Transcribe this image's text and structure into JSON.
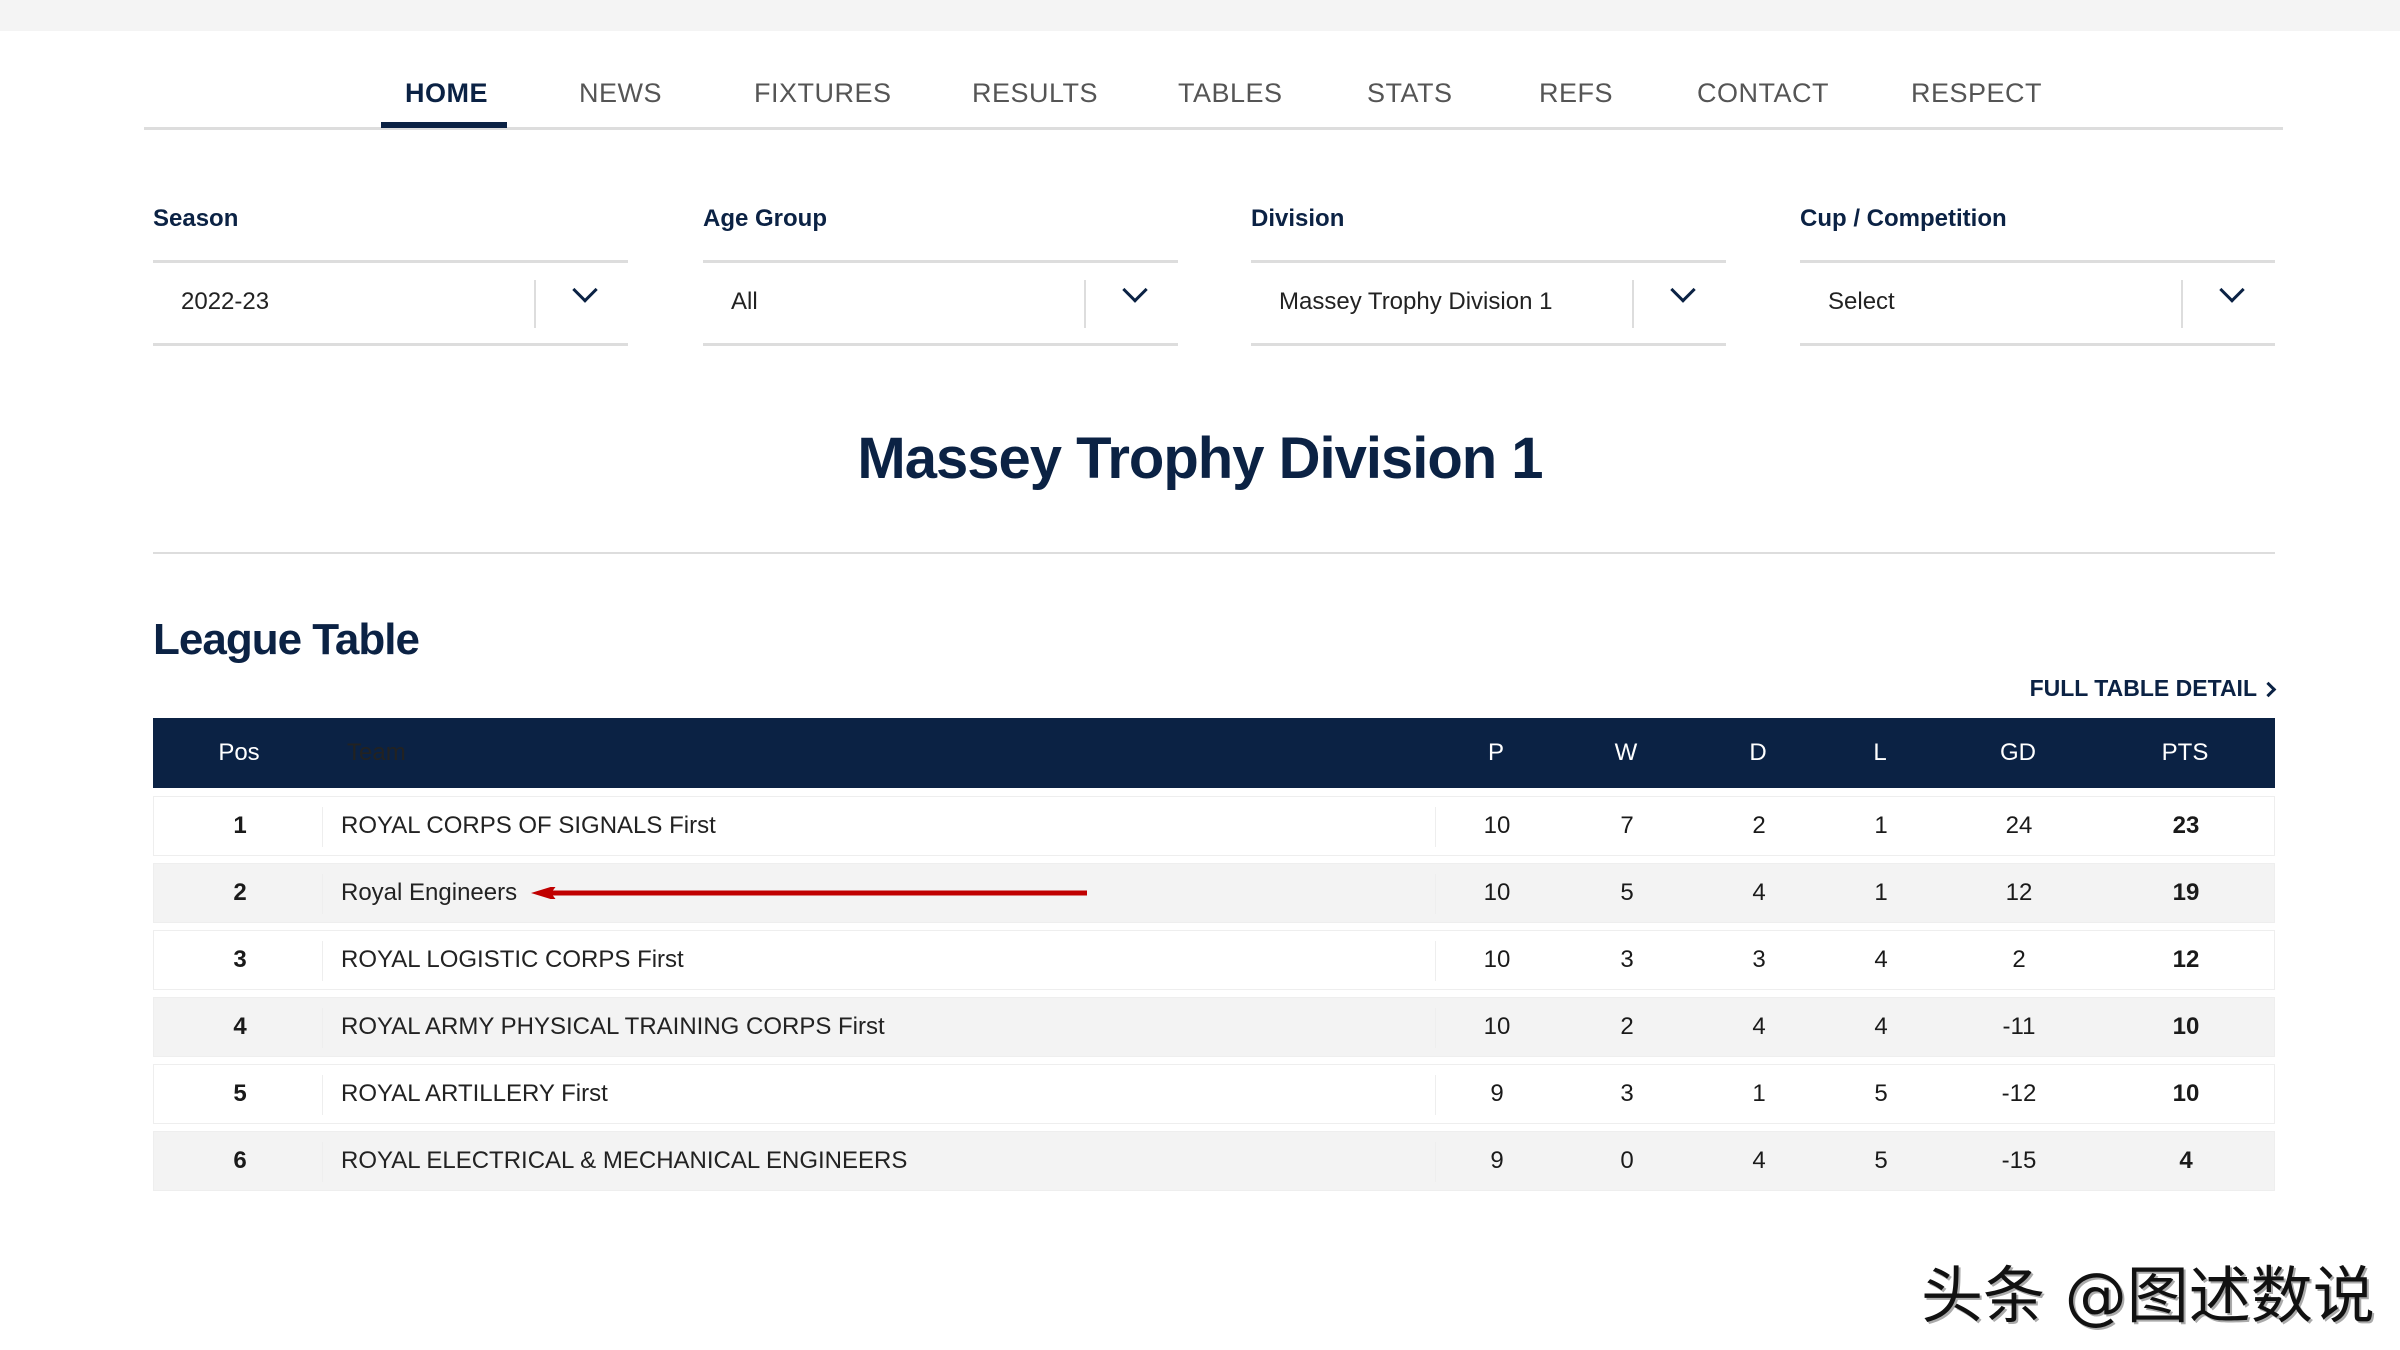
{
  "nav": {
    "items": [
      "HOME",
      "NEWS",
      "FIXTURES",
      "RESULTS",
      "TABLES",
      "STATS",
      "REFS",
      "CONTACT",
      "RESPECT"
    ],
    "active": "HOME"
  },
  "filters": [
    {
      "label": "Season",
      "value": "2022-23"
    },
    {
      "label": "Age Group",
      "value": "All"
    },
    {
      "label": "Division",
      "value": "Massey Trophy Division 1"
    },
    {
      "label": "Cup / Competition",
      "value": "Select"
    }
  ],
  "page_title": "Massey Trophy Division 1",
  "league_table": {
    "heading": "League Table",
    "full_detail_link": "FULL TABLE DETAIL",
    "columns": [
      "Pos",
      "Team",
      "P",
      "W",
      "D",
      "L",
      "GD",
      "PTS"
    ],
    "rows": [
      {
        "pos": "1",
        "team": "ROYAL CORPS OF SIGNALS First",
        "p": "10",
        "w": "7",
        "d": "2",
        "l": "1",
        "gd": "24",
        "pts": "23"
      },
      {
        "pos": "2",
        "team": "Royal Engineers",
        "p": "10",
        "w": "5",
        "d": "4",
        "l": "1",
        "gd": "12",
        "pts": "19"
      },
      {
        "pos": "3",
        "team": "ROYAL LOGISTIC CORPS First",
        "p": "10",
        "w": "3",
        "d": "3",
        "l": "4",
        "gd": "2",
        "pts": "12"
      },
      {
        "pos": "4",
        "team": "ROYAL ARMY PHYSICAL TRAINING CORPS First",
        "p": "10",
        "w": "2",
        "d": "4",
        "l": "4",
        "gd": "-11",
        "pts": "10"
      },
      {
        "pos": "5",
        "team": "ROYAL ARTILLERY First",
        "p": "9",
        "w": "3",
        "d": "1",
        "l": "5",
        "gd": "-12",
        "pts": "10"
      },
      {
        "pos": "6",
        "team": "ROYAL ELECTRICAL & MECHANICAL ENGINEERS",
        "p": "9",
        "w": "0",
        "d": "4",
        "l": "5",
        "gd": "-15",
        "pts": "4"
      }
    ],
    "highlight_arrow_color": "#c00000"
  },
  "watermark": "头条 @图述数说",
  "colors": {
    "navy": "#0b2244",
    "arrow": "#c00000"
  }
}
